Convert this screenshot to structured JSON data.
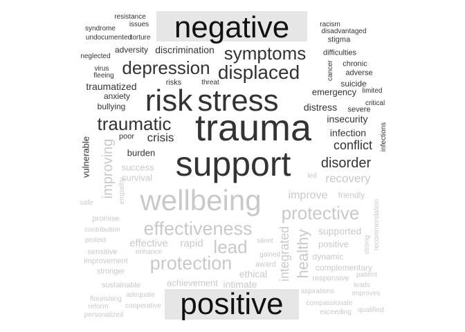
{
  "titles": {
    "top": "negative",
    "bottom": "positive"
  },
  "colors": {
    "negative": "#333333",
    "positive": "#c9c9c9",
    "title_box": "#e6e6e6",
    "title_text": "#111111"
  },
  "words": [
    "resistance",
    "issues",
    "syndrome",
    "undocumented",
    "torture",
    "racism",
    "disadvantaged",
    "stigma",
    "neglected",
    "adversity",
    "discrimination",
    "symptoms",
    "difficulties",
    "virus",
    "fleeing",
    "depression",
    "chronic",
    "displaced",
    "cancer",
    "adverse",
    "traumatized",
    "risks",
    "threat",
    "suicide",
    "anxiety",
    "risk",
    "stress",
    "emergency",
    "limited",
    "bullying",
    "distress",
    "critical",
    "severe",
    "traumatic",
    "insecurity",
    "poor",
    "crisis",
    "trauma",
    "infection",
    "infections",
    "vulnerable",
    "conflict",
    "burden",
    "improving",
    "support",
    "disorder",
    "success",
    "survival",
    "led",
    "recovery",
    "empathy",
    "improve",
    "friendly",
    "safe",
    "wellbeing",
    "protective",
    "recommendation",
    "promise",
    "effectiveness",
    "supported",
    "contribution",
    "protect",
    "effective",
    "rapid",
    "lead",
    "silent",
    "integrated",
    "healthy",
    "positive",
    "strong",
    "sensitive",
    "enhance",
    "improvement",
    "gained",
    "dynamic",
    "award",
    "complementary",
    "protection",
    "stronger",
    "ethical",
    "patient",
    "responsive",
    "sustainable",
    "achievement",
    "intimate",
    "leads",
    "adequate",
    "improves",
    "flourishing",
    "aspirations",
    "reform",
    "cooperative",
    "compassionate",
    "exceeding",
    "qualified",
    "personalized"
  ]
}
